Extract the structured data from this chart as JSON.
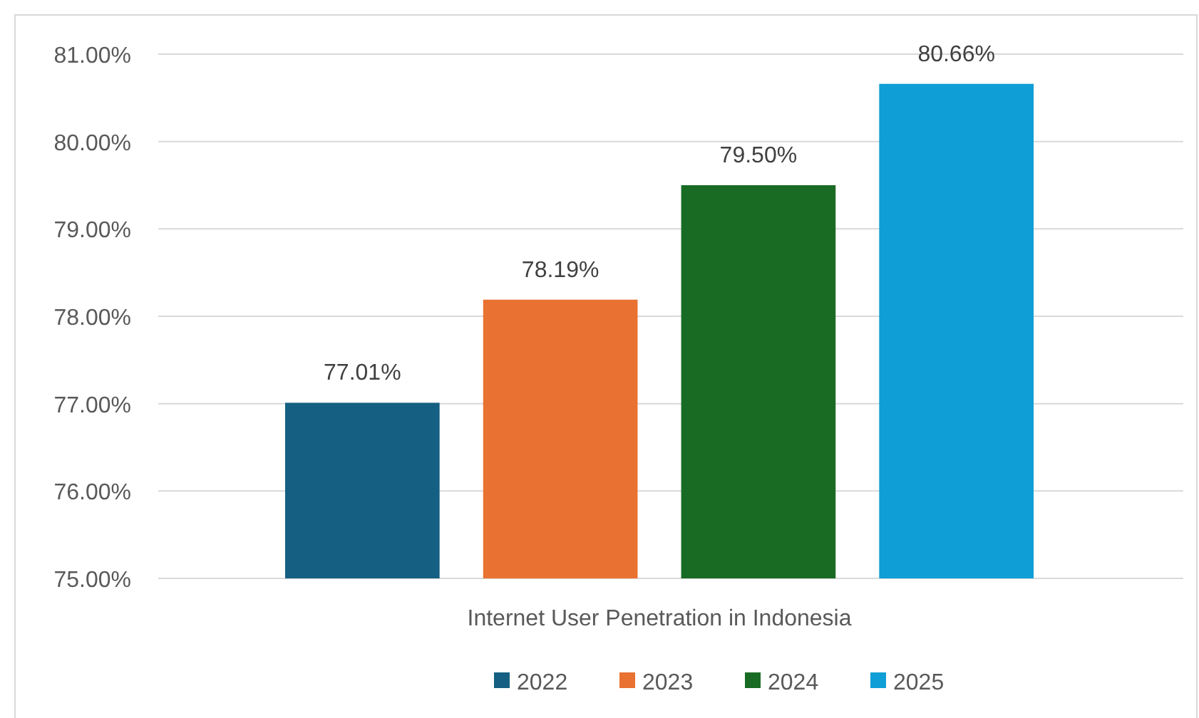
{
  "chart_data": {
    "type": "bar",
    "categories": [
      "Internet User Penetration in Indonesia"
    ],
    "series": [
      {
        "name": "2022",
        "color": "#156082",
        "values": [
          77.01
        ],
        "value_labels": [
          "77.01%"
        ]
      },
      {
        "name": "2023",
        "color": "#e97132",
        "values": [
          78.19
        ],
        "value_labels": [
          "78.19%"
        ]
      },
      {
        "name": "2024",
        "color": "#196b24",
        "values": [
          79.5
        ],
        "value_labels": [
          "79.50%"
        ]
      },
      {
        "name": "2025",
        "color": "#0f9ed5",
        "values": [
          80.66
        ],
        "value_labels": [
          "80.66%"
        ]
      }
    ],
    "ylim": [
      75,
      81
    ],
    "yticks": [
      {
        "value": 75,
        "label": "75.00%"
      },
      {
        "value": 76,
        "label": "76.00%"
      },
      {
        "value": 77,
        "label": "77.00%"
      },
      {
        "value": 78,
        "label": "78.00%"
      },
      {
        "value": 79,
        "label": "79.00%"
      },
      {
        "value": 80,
        "label": "80.00%"
      },
      {
        "value": 81,
        "label": "81.00%"
      }
    ],
    "grid": "y",
    "legend": "bottom"
  }
}
